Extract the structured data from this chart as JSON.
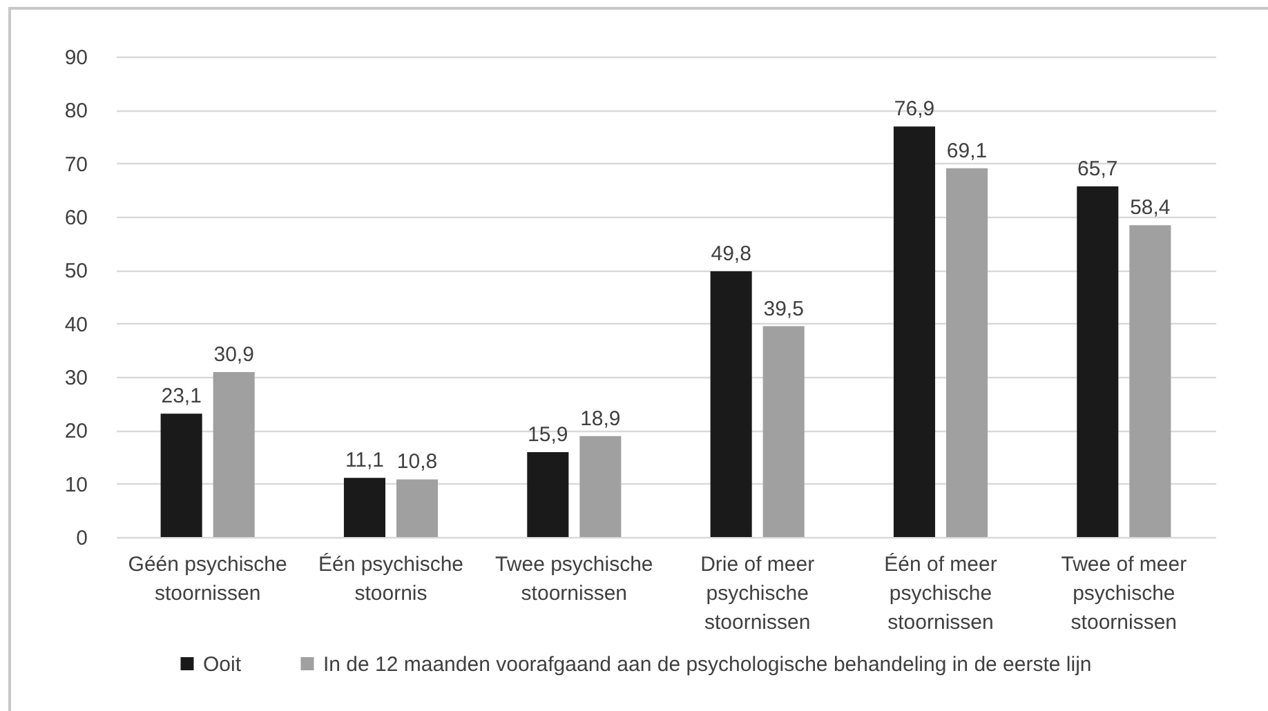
{
  "chart_data": {
    "type": "bar",
    "categories": [
      "Géén psychische stoornissen",
      "Één psychische stoornis",
      "Twee psychische stoornissen",
      "Drie of meer psychische stoornissen",
      "Één of meer psychische stoornissen",
      "Twee of meer psychische stoornissen"
    ],
    "series": [
      {
        "name": "Ooit",
        "color": "#1a1a1a",
        "values": [
          23.1,
          11.1,
          15.9,
          49.8,
          76.9,
          65.7
        ],
        "value_labels": [
          "23,1",
          "11,1",
          "15,9",
          "49,8",
          "76,9",
          "65,7"
        ]
      },
      {
        "name": "In de 12 maanden voorafgaand aan de psychologische behandeling in de eerste lijn",
        "color": "#a0a0a0",
        "values": [
          30.9,
          10.8,
          18.9,
          39.5,
          69.1,
          58.4
        ],
        "value_labels": [
          "30,9",
          "10,8",
          "18,9",
          "39,5",
          "69,1",
          "58,4"
        ]
      }
    ],
    "ylim": [
      0,
      90
    ],
    "yticks": [
      0,
      10,
      20,
      30,
      40,
      50,
      60,
      70,
      80,
      90
    ],
    "grid": "y",
    "legend": "bottom"
  }
}
